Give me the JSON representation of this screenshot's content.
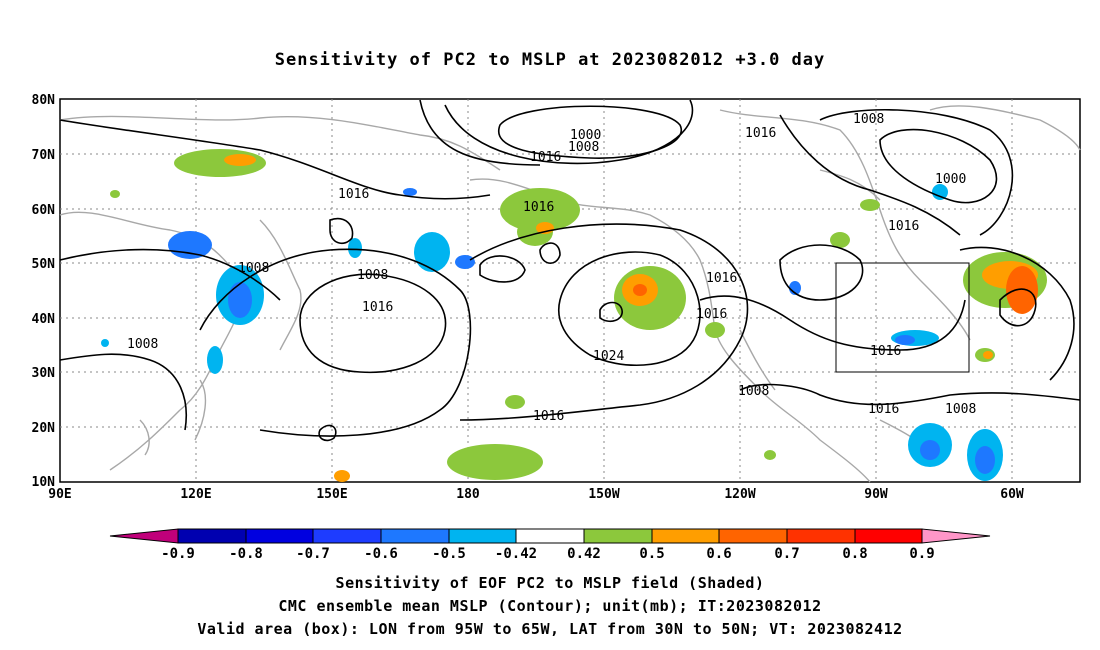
{
  "title": "Sensitivity of PC2 to MSLP at 2023082012 +3.0 day",
  "axes": {
    "lat_labels": [
      "80N",
      "70N",
      "60N",
      "50N",
      "40N",
      "30N",
      "20N",
      "10N"
    ],
    "lon_labels": [
      "90E",
      "120E",
      "150E",
      "180",
      "150W",
      "120W",
      "90W",
      "60W"
    ]
  },
  "contour_labels": [
    "1000",
    "1008",
    "1016",
    "1016",
    "1008",
    "1016",
    "1016",
    "1000",
    "1016",
    "1008",
    "1008",
    "1016",
    "1008",
    "1024",
    "1016",
    "1016",
    "1016",
    "1016",
    "1008",
    "1016",
    "1008"
  ],
  "colorbar": {
    "labels": [
      "-0.9",
      "-0.8",
      "-0.7",
      "-0.6",
      "-0.5",
      "-0.42",
      "0.42",
      "0.5",
      "0.6",
      "0.7",
      "0.8",
      "0.9"
    ],
    "colors": [
      "#c0007a",
      "#0000b0",
      "#0000e0",
      "#1e3cff",
      "#1e78ff",
      "#00b4f0",
      "#ffffff",
      "#8cc83c",
      "#ff9e00",
      "#ff6400",
      "#ff3200",
      "#ff0000",
      "#ff96c8"
    ]
  },
  "captions": {
    "line1": "Sensitivity of EOF PC2 to MSLP field (Shaded)",
    "line2": "CMC ensemble mean MSLP (Contour); unit(mb); IT:2023082012",
    "line3": "Valid area (box): LON from 95W to 65W, LAT from 30N to 50N; VT: 2023082412"
  }
}
